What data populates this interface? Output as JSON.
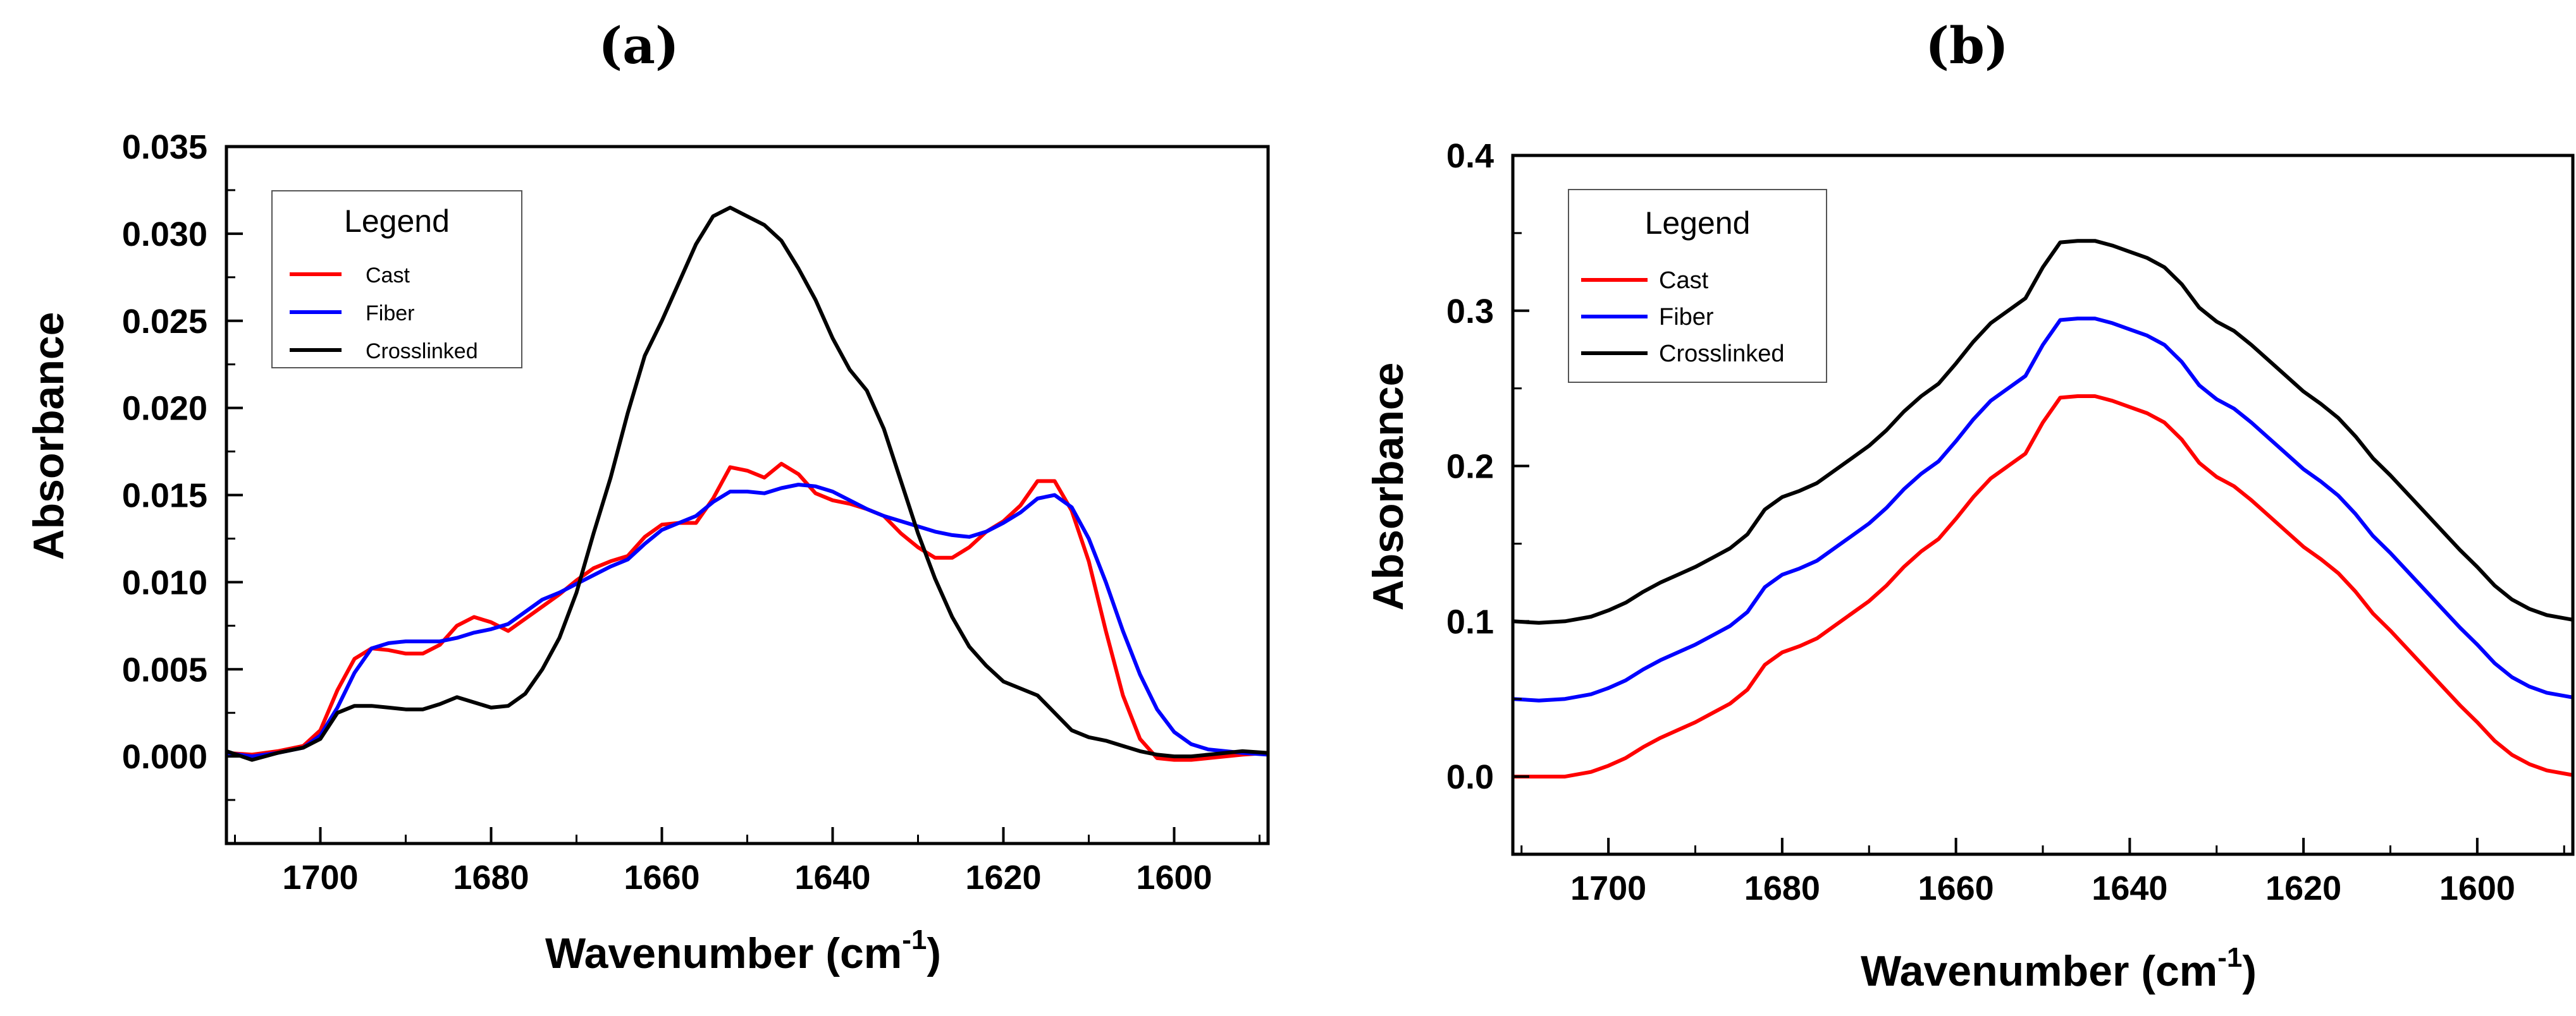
{
  "chart_data": [
    {
      "panel_label": "(a)",
      "type": "line",
      "ylabel": "Absorbance",
      "xlabel": "Wavenumber (cm",
      "xlabel_sup": "-1",
      "xlabel_end": ")",
      "xlim": [
        1711,
        1589
      ],
      "ylim": [
        -0.005,
        0.035
      ],
      "xticks": [
        1700,
        1680,
        1660,
        1640,
        1620,
        1600
      ],
      "xtick_labels": [
        "1700",
        "1680",
        "1660",
        "1640",
        "1620",
        "1600"
      ],
      "yticks": [
        0.0,
        0.005,
        0.01,
        0.015,
        0.02,
        0.025,
        0.03,
        0.035
      ],
      "ytick_labels": [
        "0.000",
        "0.005",
        "0.010",
        "0.015",
        "0.020",
        "0.025",
        "0.030",
        "0.035"
      ],
      "legend": {
        "title": "Legend",
        "position": "top-left"
      },
      "series": [
        {
          "name": "Cast",
          "color": "#ff0000",
          "x": [
            1711,
            1708,
            1705,
            1702,
            1700,
            1698,
            1696,
            1694,
            1692,
            1690,
            1688,
            1686,
            1684,
            1682,
            1680,
            1678,
            1676,
            1674,
            1672,
            1670,
            1668,
            1666,
            1664,
            1662,
            1660,
            1658,
            1656,
            1654,
            1652,
            1650,
            1648,
            1646,
            1644,
            1642,
            1640,
            1638,
            1636,
            1634,
            1632,
            1630,
            1628,
            1626,
            1624,
            1622,
            1620,
            1618,
            1616,
            1614,
            1612,
            1610,
            1608,
            1606,
            1604,
            1602,
            1600,
            1598,
            1596,
            1594,
            1592,
            1589
          ],
          "y": [
            0.0002,
            0.0001,
            0.0003,
            0.0006,
            0.0015,
            0.0038,
            0.0056,
            0.0062,
            0.0061,
            0.0059,
            0.0059,
            0.0064,
            0.0075,
            0.008,
            0.0077,
            0.0072,
            0.0079,
            0.0086,
            0.0093,
            0.0101,
            0.0108,
            0.0112,
            0.0115,
            0.0126,
            0.0133,
            0.0134,
            0.0134,
            0.0148,
            0.0166,
            0.0164,
            0.016,
            0.0168,
            0.0162,
            0.0151,
            0.0147,
            0.0145,
            0.0142,
            0.0138,
            0.0128,
            0.012,
            0.0114,
            0.0114,
            0.012,
            0.0129,
            0.0135,
            0.0144,
            0.0158,
            0.0158,
            0.0141,
            0.0112,
            0.0072,
            0.0035,
            0.001,
            -0.0001,
            -0.0002,
            -0.0002,
            -0.0001,
            0.0,
            0.0001,
            0.0002
          ]
        },
        {
          "name": "Fiber",
          "color": "#0000ff",
          "x": [
            1711,
            1708,
            1705,
            1702,
            1700,
            1698,
            1696,
            1694,
            1692,
            1690,
            1688,
            1686,
            1684,
            1682,
            1680,
            1678,
            1676,
            1674,
            1672,
            1670,
            1668,
            1666,
            1664,
            1662,
            1660,
            1658,
            1656,
            1654,
            1652,
            1650,
            1648,
            1646,
            1644,
            1642,
            1640,
            1638,
            1636,
            1634,
            1632,
            1630,
            1628,
            1626,
            1624,
            1622,
            1620,
            1618,
            1616,
            1614,
            1612,
            1610,
            1608,
            1606,
            1604,
            1602,
            1600,
            1598,
            1596,
            1594,
            1592,
            1589
          ],
          "y": [
            0.0002,
            0.0,
            0.0002,
            0.0005,
            0.0012,
            0.0028,
            0.0048,
            0.0062,
            0.0065,
            0.0066,
            0.0066,
            0.0066,
            0.0068,
            0.0071,
            0.0073,
            0.0076,
            0.0083,
            0.009,
            0.0094,
            0.0099,
            0.0104,
            0.0109,
            0.0113,
            0.0122,
            0.013,
            0.0134,
            0.0138,
            0.0146,
            0.0152,
            0.0152,
            0.0151,
            0.0154,
            0.0156,
            0.0155,
            0.0152,
            0.0147,
            0.0142,
            0.0138,
            0.0135,
            0.0132,
            0.0129,
            0.0127,
            0.0126,
            0.0129,
            0.0134,
            0.014,
            0.0148,
            0.015,
            0.0143,
            0.0125,
            0.01,
            0.0072,
            0.0047,
            0.0027,
            0.0014,
            0.0007,
            0.0004,
            0.0003,
            0.0002,
            0.0001
          ]
        },
        {
          "name": "Crosslinked",
          "color": "#000000",
          "x": [
            1711,
            1708,
            1705,
            1702,
            1700,
            1698,
            1696,
            1694,
            1692,
            1690,
            1688,
            1686,
            1684,
            1682,
            1680,
            1678,
            1676,
            1674,
            1672,
            1670,
            1668,
            1666,
            1664,
            1662,
            1660,
            1658,
            1656,
            1654,
            1652,
            1650,
            1648,
            1646,
            1644,
            1642,
            1640,
            1638,
            1636,
            1634,
            1632,
            1630,
            1628,
            1626,
            1624,
            1622,
            1620,
            1618,
            1616,
            1614,
            1612,
            1610,
            1608,
            1606,
            1604,
            1602,
            1600,
            1598,
            1596,
            1594,
            1592,
            1589
          ],
          "y": [
            0.0003,
            -0.0002,
            0.0002,
            0.0005,
            0.001,
            0.0025,
            0.0029,
            0.0029,
            0.0028,
            0.0027,
            0.0027,
            0.003,
            0.0034,
            0.0031,
            0.0028,
            0.0029,
            0.0036,
            0.005,
            0.0068,
            0.0094,
            0.0128,
            0.016,
            0.0197,
            0.023,
            0.025,
            0.0272,
            0.0294,
            0.031,
            0.0315,
            0.031,
            0.0305,
            0.0296,
            0.028,
            0.0262,
            0.024,
            0.0222,
            0.021,
            0.0188,
            0.0158,
            0.0128,
            0.0102,
            0.008,
            0.0063,
            0.0052,
            0.0043,
            0.0039,
            0.0035,
            0.0025,
            0.0015,
            0.0011,
            0.0009,
            0.0006,
            0.0003,
            0.0001,
            0.0,
            0.0,
            0.0001,
            0.0002,
            0.0003,
            0.0002
          ]
        }
      ]
    },
    {
      "panel_label": "(b)",
      "type": "line",
      "ylabel": "Absorbance",
      "xlabel": "Wavenumber (cm",
      "xlabel_sup": "-1",
      "xlabel_end": ")",
      "xlim": [
        1711,
        1589
      ],
      "ylim": [
        -0.05,
        0.4
      ],
      "xticks": [
        1700,
        1680,
        1660,
        1640,
        1620,
        1600
      ],
      "xtick_labels": [
        "1700",
        "1680",
        "1660",
        "1640",
        "1620",
        "1600"
      ],
      "yticks": [
        0.0,
        0.1,
        0.2,
        0.3,
        0.4
      ],
      "ytick_labels": [
        "0.0",
        "0.1",
        "0.2",
        "0.3",
        "0.4"
      ],
      "legend": {
        "title": "Legend",
        "position": "top-left"
      },
      "series": [
        {
          "name": "Cast",
          "color": "#ff0000",
          "x": [
            1711,
            1708,
            1705,
            1702,
            1700,
            1698,
            1696,
            1694,
            1692,
            1690,
            1688,
            1686,
            1684,
            1682,
            1680,
            1678,
            1676,
            1674,
            1672,
            1670,
            1668,
            1666,
            1664,
            1662,
            1660,
            1658,
            1656,
            1654,
            1652,
            1650,
            1648,
            1646,
            1644,
            1642,
            1640,
            1638,
            1636,
            1634,
            1632,
            1630,
            1628,
            1626,
            1624,
            1622,
            1620,
            1618,
            1616,
            1614,
            1612,
            1610,
            1608,
            1606,
            1604,
            1602,
            1600,
            1598,
            1596,
            1594,
            1592,
            1589
          ],
          "y": [
            0.0,
            0.0,
            0.0,
            0.003,
            0.007,
            0.012,
            0.019,
            0.025,
            0.03,
            0.035,
            0.041,
            0.047,
            0.056,
            0.072,
            0.08,
            0.084,
            0.089,
            0.097,
            0.105,
            0.113,
            0.123,
            0.135,
            0.145,
            0.153,
            0.166,
            0.18,
            0.192,
            0.2,
            0.208,
            0.228,
            0.244,
            0.245,
            0.245,
            0.242,
            0.238,
            0.234,
            0.228,
            0.217,
            0.202,
            0.193,
            0.187,
            0.178,
            0.168,
            0.158,
            0.148,
            0.14,
            0.131,
            0.119,
            0.105,
            0.094,
            0.082,
            0.07,
            0.058,
            0.046,
            0.035,
            0.023,
            0.014,
            0.008,
            0.004,
            0.001
          ]
        },
        {
          "name": "Fiber",
          "color": "#0000ff",
          "x": [
            1711,
            1708,
            1705,
            1702,
            1700,
            1698,
            1696,
            1694,
            1692,
            1690,
            1688,
            1686,
            1684,
            1682,
            1680,
            1678,
            1676,
            1674,
            1672,
            1670,
            1668,
            1666,
            1664,
            1662,
            1660,
            1658,
            1656,
            1654,
            1652,
            1650,
            1648,
            1646,
            1644,
            1642,
            1640,
            1638,
            1636,
            1634,
            1632,
            1630,
            1628,
            1626,
            1624,
            1622,
            1620,
            1618,
            1616,
            1614,
            1612,
            1610,
            1608,
            1606,
            1604,
            1602,
            1600,
            1598,
            1596,
            1594,
            1592,
            1589
          ],
          "y": [
            0.05,
            0.049,
            0.05,
            0.053,
            0.057,
            0.062,
            0.069,
            0.075,
            0.08,
            0.085,
            0.091,
            0.097,
            0.106,
            0.122,
            0.13,
            0.134,
            0.139,
            0.147,
            0.155,
            0.163,
            0.173,
            0.185,
            0.195,
            0.203,
            0.216,
            0.23,
            0.242,
            0.25,
            0.258,
            0.278,
            0.294,
            0.295,
            0.295,
            0.292,
            0.288,
            0.284,
            0.278,
            0.267,
            0.252,
            0.243,
            0.237,
            0.228,
            0.218,
            0.208,
            0.198,
            0.19,
            0.181,
            0.169,
            0.155,
            0.144,
            0.132,
            0.12,
            0.108,
            0.096,
            0.085,
            0.073,
            0.064,
            0.058,
            0.054,
            0.051
          ]
        },
        {
          "name": "Crosslinked",
          "color": "#000000",
          "x": [
            1711,
            1708,
            1705,
            1702,
            1700,
            1698,
            1696,
            1694,
            1692,
            1690,
            1688,
            1686,
            1684,
            1682,
            1680,
            1678,
            1676,
            1674,
            1672,
            1670,
            1668,
            1666,
            1664,
            1662,
            1660,
            1658,
            1656,
            1654,
            1652,
            1650,
            1648,
            1646,
            1644,
            1642,
            1640,
            1638,
            1636,
            1634,
            1632,
            1630,
            1628,
            1626,
            1624,
            1622,
            1620,
            1618,
            1616,
            1614,
            1612,
            1610,
            1608,
            1606,
            1604,
            1602,
            1600,
            1598,
            1596,
            1594,
            1592,
            1589
          ],
          "y": [
            0.1,
            0.099,
            0.1,
            0.103,
            0.107,
            0.112,
            0.119,
            0.125,
            0.13,
            0.135,
            0.141,
            0.147,
            0.156,
            0.172,
            0.18,
            0.184,
            0.189,
            0.197,
            0.205,
            0.213,
            0.223,
            0.235,
            0.245,
            0.253,
            0.266,
            0.28,
            0.292,
            0.3,
            0.308,
            0.328,
            0.344,
            0.345,
            0.345,
            0.342,
            0.338,
            0.334,
            0.328,
            0.317,
            0.302,
            0.293,
            0.287,
            0.278,
            0.268,
            0.258,
            0.248,
            0.24,
            0.231,
            0.219,
            0.205,
            0.194,
            0.182,
            0.17,
            0.158,
            0.146,
            0.135,
            0.123,
            0.114,
            0.108,
            0.104,
            0.101
          ]
        }
      ]
    }
  ]
}
